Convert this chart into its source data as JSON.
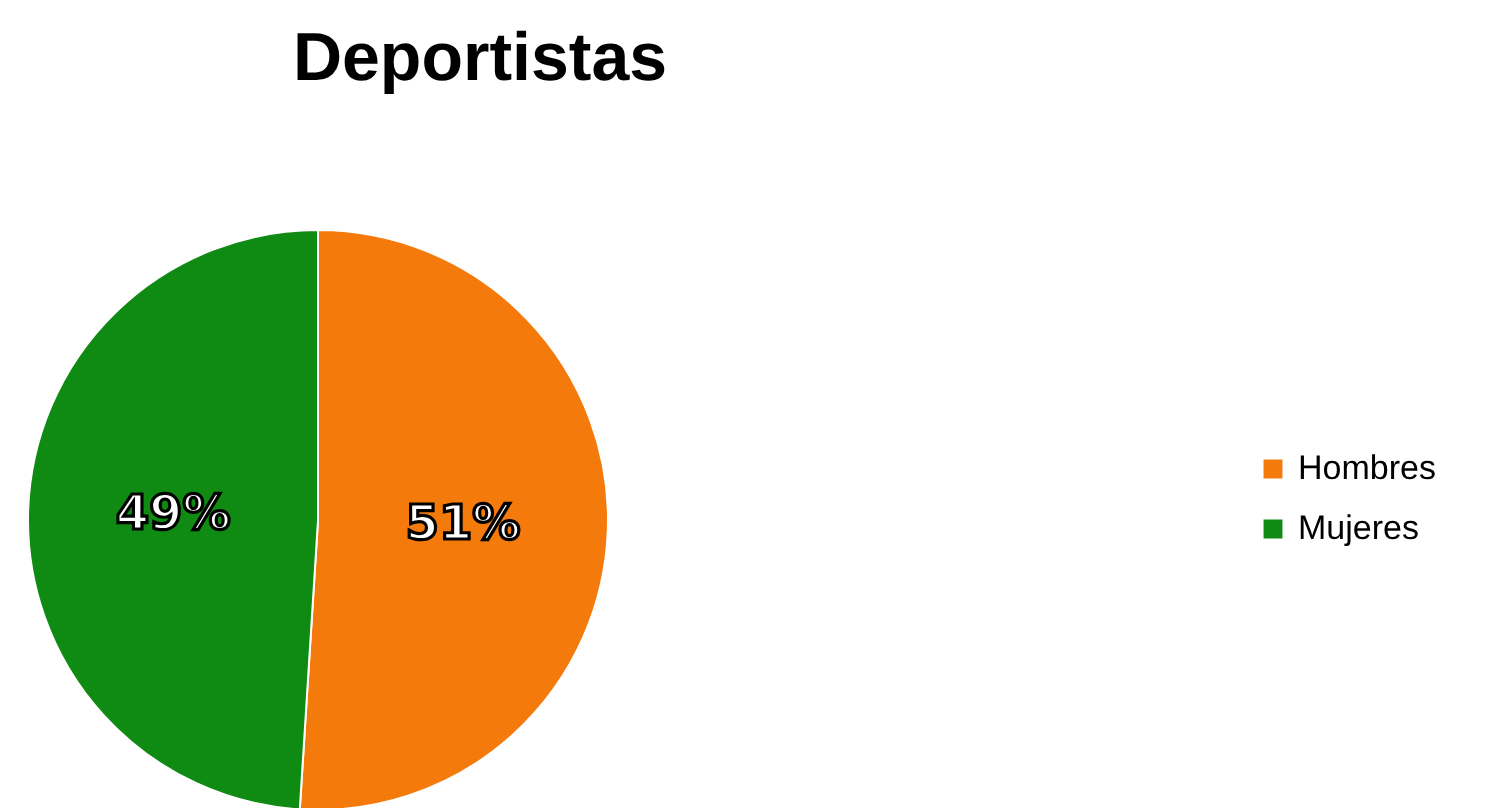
{
  "chart_data": {
    "type": "pie",
    "title": "Deportistas",
    "categories": [
      "Hombres",
      "Mujeres"
    ],
    "values": [
      51,
      49
    ],
    "colors": [
      "#f57a0c",
      "#0f8a12"
    ],
    "value_labels": [
      "51%",
      "49%"
    ],
    "legend": "right"
  }
}
